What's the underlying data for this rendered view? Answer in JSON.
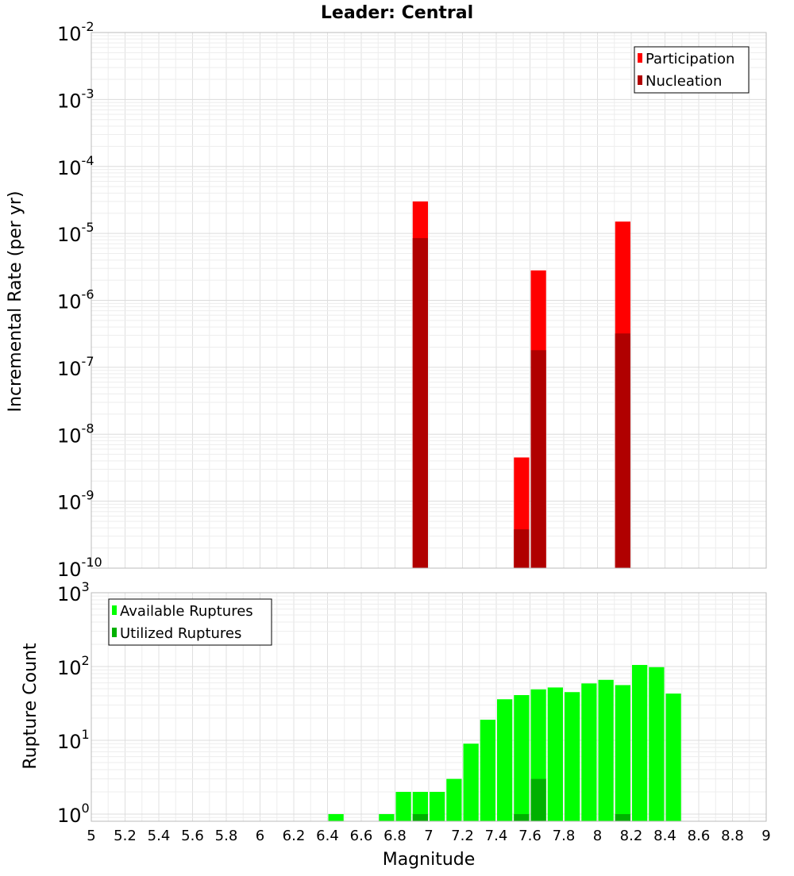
{
  "chart_data": [
    {
      "type": "bar",
      "title": "Leader: Central",
      "xlabel": "",
      "ylabel": "Incremental Rate (per yr)",
      "yscale": "log",
      "xlim": [
        5,
        9
      ],
      "ylim": [
        1e-10,
        0.01
      ],
      "y_tick_exponents": [
        "-10",
        "-9",
        "-8",
        "-7",
        "-6",
        "-5",
        "-4",
        "-3",
        "-2"
      ],
      "grid": true,
      "legend_position": "top-right",
      "bin_width": 0.1,
      "series": [
        {
          "name": "Participation",
          "color": "#ff0000",
          "points": [
            {
              "x": 6.95,
              "y": 3e-05
            },
            {
              "x": 7.55,
              "y": 4.5e-09
            },
            {
              "x": 7.65,
              "y": 2.8e-06
            },
            {
              "x": 8.15,
              "y": 1.5e-05
            }
          ]
        },
        {
          "name": "Nucleation",
          "color": "#b00000",
          "points": [
            {
              "x": 6.95,
              "y": 8.5e-06
            },
            {
              "x": 7.55,
              "y": 3.8e-10
            },
            {
              "x": 7.65,
              "y": 1.8e-07
            },
            {
              "x": 8.15,
              "y": 3.2e-07
            }
          ]
        }
      ]
    },
    {
      "type": "bar",
      "title": "",
      "xlabel": "Magnitude",
      "ylabel": "Rupture Count",
      "yscale": "log",
      "xlim": [
        5,
        9
      ],
      "ylim": [
        0.8,
        1000
      ],
      "y_tick_exponents": [
        "0",
        "1",
        "2",
        "3"
      ],
      "x_ticks": [
        "5",
        "5.2",
        "5.4",
        "5.6",
        "5.8",
        "6",
        "6.2",
        "6.4",
        "6.6",
        "6.8",
        "7",
        "7.2",
        "7.4",
        "7.6",
        "7.8",
        "8",
        "8.2",
        "8.4",
        "8.6",
        "8.8",
        "9"
      ],
      "grid": true,
      "legend_position": "top-left",
      "bin_width": 0.1,
      "series": [
        {
          "name": "Available Ruptures",
          "color": "#00ff00",
          "points": [
            {
              "x": 6.45,
              "y": 1
            },
            {
              "x": 6.75,
              "y": 1
            },
            {
              "x": 6.85,
              "y": 2
            },
            {
              "x": 6.95,
              "y": 2
            },
            {
              "x": 7.05,
              "y": 2
            },
            {
              "x": 7.15,
              "y": 3
            },
            {
              "x": 7.25,
              "y": 9
            },
            {
              "x": 7.35,
              "y": 19
            },
            {
              "x": 7.45,
              "y": 36
            },
            {
              "x": 7.55,
              "y": 41
            },
            {
              "x": 7.65,
              "y": 49
            },
            {
              "x": 7.75,
              "y": 52
            },
            {
              "x": 7.85,
              "y": 45
            },
            {
              "x": 7.95,
              "y": 59
            },
            {
              "x": 8.05,
              "y": 66
            },
            {
              "x": 8.15,
              "y": 56
            },
            {
              "x": 8.25,
              "y": 105
            },
            {
              "x": 8.35,
              "y": 98
            },
            {
              "x": 8.45,
              "y": 43
            }
          ]
        },
        {
          "name": "Utilized Ruptures",
          "color": "#00b000",
          "points": [
            {
              "x": 6.95,
              "y": 1
            },
            {
              "x": 7.55,
              "y": 1
            },
            {
              "x": 7.65,
              "y": 3
            },
            {
              "x": 8.15,
              "y": 1
            }
          ]
        }
      ]
    }
  ]
}
